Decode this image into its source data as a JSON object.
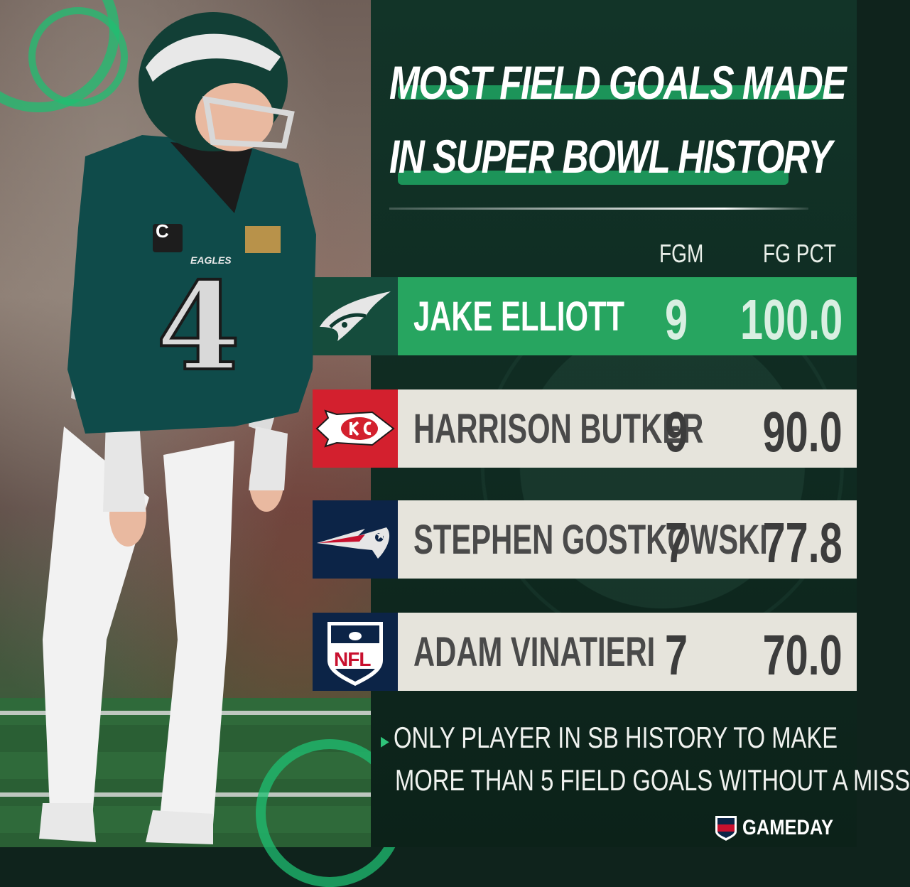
{
  "title": {
    "line1": "MOST FIELD GOALS MADE",
    "line2": "IN SUPER BOWL HISTORY"
  },
  "columns": {
    "fgm": "FGM",
    "pct": "FG PCT"
  },
  "rows": [
    {
      "team_logo": "eagles-logo-icon",
      "name": "JAKE ELLIOTT",
      "fgm": "9",
      "pct": "100.0",
      "bar_color": "#27a560",
      "logo_bg": "#154c3c",
      "text_color": "#ffffff",
      "num_color": "#d9efe2"
    },
    {
      "team_logo": "chiefs-logo-icon",
      "name": "HARRISON BUTKER",
      "fgm": "9",
      "pct": "90.0",
      "bar_color": "#e6e4dc",
      "logo_bg": "#d3202e",
      "text_color": "#4a4a4a",
      "num_color": "#3c3c3c"
    },
    {
      "team_logo": "patriots-logo-icon",
      "name": "STEPHEN GOSTKOWSKI",
      "fgm": "7",
      "pct": "77.8",
      "bar_color": "#e6e4dc",
      "logo_bg": "#0c2447",
      "text_color": "#4a4a4a",
      "num_color": "#3c3c3c"
    },
    {
      "team_logo": "nfl-shield-icon",
      "name": "ADAM VINATIERI",
      "fgm": "7",
      "pct": "70.0",
      "bar_color": "#e6e4dc",
      "logo_bg": "#0c2447",
      "text_color": "#4a4a4a",
      "num_color": "#3c3c3c"
    }
  ],
  "note": {
    "line1": "ONLY PLAYER IN SB HISTORY TO MAKE",
    "line2": "MORE THAN 5 FIELD GOALS WITHOUT A MISS"
  },
  "player": {
    "jersey_number": "4",
    "jersey_text": "EAGLES",
    "captain_patch": "C"
  },
  "branding": {
    "nfl_mark": "NFL",
    "label": "GAMEDAY"
  },
  "colors": {
    "accent_green": "#27a560",
    "background": "#0f231c"
  }
}
